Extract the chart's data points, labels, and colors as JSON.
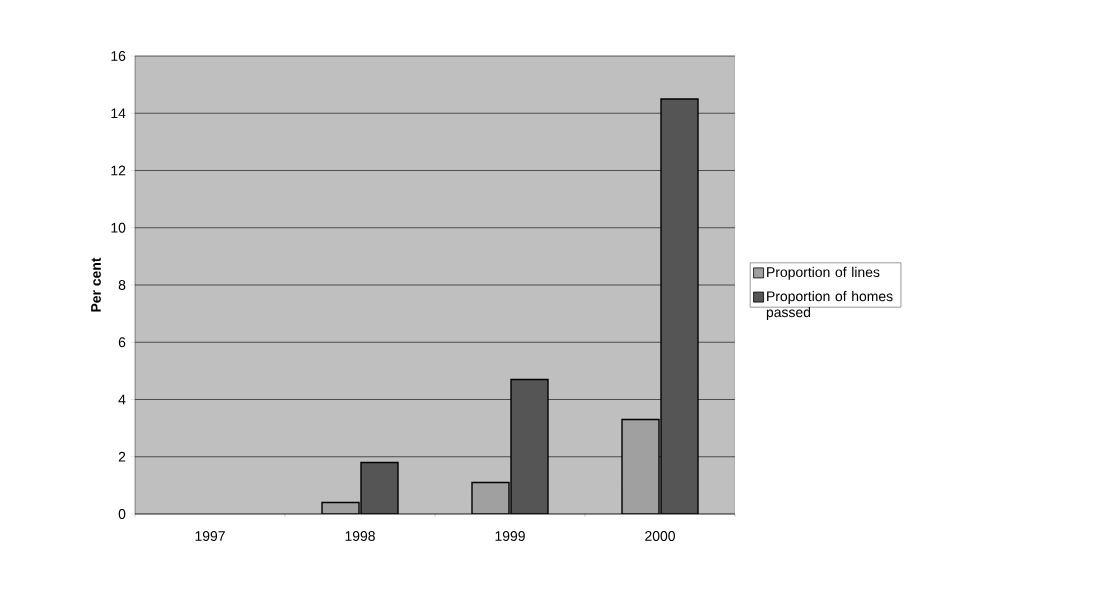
{
  "chart_data": {
    "type": "bar",
    "ylabel": "Per cent",
    "categories": [
      "1997",
      "1998",
      "1999",
      "2000"
    ],
    "series": [
      {
        "name": "Proportion of lines",
        "color": "#a0a0a0",
        "values": [
          null,
          0.4,
          1.1,
          3.3
        ]
      },
      {
        "name": "Proportion of homes passed",
        "color": "#555555",
        "values": [
          null,
          1.8,
          4.7,
          14.5
        ]
      }
    ],
    "ylim": [
      0,
      16
    ],
    "yticks": [
      0,
      2,
      4,
      6,
      8,
      10,
      12,
      14,
      16
    ],
    "grid": "y",
    "legend": "right"
  }
}
